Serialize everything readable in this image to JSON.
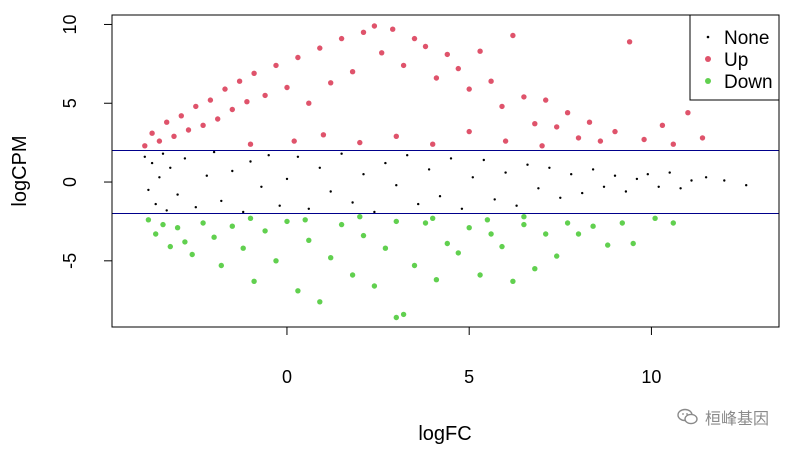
{
  "chart_data": {
    "type": "scatter",
    "title": "",
    "xlabel": "logFC",
    "ylabel": "logCPM",
    "xlim": [
      -4.8,
      13.5
    ],
    "ylim": [
      -9.2,
      10.6
    ],
    "x_ticks": [
      0,
      5,
      10
    ],
    "y_ticks": [
      -5,
      0,
      5,
      10
    ],
    "grid": false,
    "legend_position": "top-right",
    "hlines": [
      2,
      -2
    ],
    "hline_color": "#00008b",
    "series": [
      {
        "name": "None",
        "color": "#000000",
        "marker_size": "small",
        "note_range": "logCPM between -2 and 2",
        "points": [
          [
            -3.9,
            1.6
          ],
          [
            -3.8,
            -0.5
          ],
          [
            -3.7,
            1.2
          ],
          [
            -3.6,
            -1.4
          ],
          [
            -3.5,
            0.3
          ],
          [
            -3.4,
            1.8
          ],
          [
            -3.3,
            -1.8
          ],
          [
            -3.2,
            0.9
          ],
          [
            -3.0,
            -0.8
          ],
          [
            -2.8,
            1.5
          ],
          [
            -2.5,
            -1.6
          ],
          [
            -2.2,
            0.4
          ],
          [
            -2.0,
            1.9
          ],
          [
            -1.8,
            -1.2
          ],
          [
            -1.5,
            0.7
          ],
          [
            -1.2,
            -1.9
          ],
          [
            -1.0,
            1.3
          ],
          [
            -0.7,
            -0.3
          ],
          [
            -0.5,
            1.7
          ],
          [
            -0.2,
            -1.5
          ],
          [
            0.0,
            0.2
          ],
          [
            0.3,
            1.6
          ],
          [
            0.6,
            -1.7
          ],
          [
            0.9,
            0.9
          ],
          [
            1.2,
            -0.6
          ],
          [
            1.5,
            1.8
          ],
          [
            1.8,
            -1.3
          ],
          [
            2.1,
            0.5
          ],
          [
            2.4,
            -1.9
          ],
          [
            2.7,
            1.2
          ],
          [
            3.0,
            -0.2
          ],
          [
            3.3,
            1.7
          ],
          [
            3.6,
            -1.4
          ],
          [
            3.9,
            0.8
          ],
          [
            4.2,
            -0.9
          ],
          [
            4.5,
            1.5
          ],
          [
            4.8,
            -1.7
          ],
          [
            5.1,
            0.3
          ],
          [
            5.4,
            1.4
          ],
          [
            5.7,
            -1.1
          ],
          [
            6.0,
            0.6
          ],
          [
            6.3,
            -1.5
          ],
          [
            6.6,
            1.1
          ],
          [
            6.9,
            -0.4
          ],
          [
            7.2,
            0.9
          ],
          [
            7.5,
            -1.0
          ],
          [
            7.8,
            0.5
          ],
          [
            8.1,
            -0.7
          ],
          [
            8.4,
            0.8
          ],
          [
            8.7,
            -0.3
          ],
          [
            9.0,
            0.4
          ],
          [
            9.3,
            -0.6
          ],
          [
            9.6,
            0.2
          ],
          [
            9.9,
            0.5
          ],
          [
            10.2,
            -0.3
          ],
          [
            10.5,
            0.6
          ],
          [
            10.8,
            -0.4
          ],
          [
            11.1,
            0.1
          ],
          [
            11.5,
            0.3
          ],
          [
            12.0,
            0.1
          ],
          [
            12.6,
            -0.2
          ]
        ]
      },
      {
        "name": "Up",
        "color": "#df536b",
        "marker_size": "large",
        "note_range": "logCPM above 2",
        "points": [
          [
            -3.9,
            2.3
          ],
          [
            -3.7,
            3.1
          ],
          [
            -3.5,
            2.6
          ],
          [
            -3.3,
            3.8
          ],
          [
            -3.1,
            2.9
          ],
          [
            -2.9,
            4.2
          ],
          [
            -2.7,
            3.3
          ],
          [
            -2.5,
            4.8
          ],
          [
            -2.3,
            3.6
          ],
          [
            -2.1,
            5.2
          ],
          [
            -1.9,
            4.0
          ],
          [
            -1.7,
            5.9
          ],
          [
            -1.5,
            4.6
          ],
          [
            -1.3,
            6.4
          ],
          [
            -1.1,
            5.1
          ],
          [
            -0.9,
            6.9
          ],
          [
            -0.6,
            5.5
          ],
          [
            -0.3,
            7.4
          ],
          [
            0.0,
            6.0
          ],
          [
            0.3,
            7.9
          ],
          [
            0.6,
            5.0
          ],
          [
            0.9,
            8.5
          ],
          [
            1.2,
            6.3
          ],
          [
            1.5,
            9.1
          ],
          [
            1.8,
            7.0
          ],
          [
            2.1,
            9.5
          ],
          [
            2.4,
            9.9
          ],
          [
            2.6,
            8.2
          ],
          [
            2.9,
            9.7
          ],
          [
            3.2,
            7.4
          ],
          [
            3.5,
            9.1
          ],
          [
            3.8,
            8.6
          ],
          [
            4.1,
            6.6
          ],
          [
            4.4,
            8.1
          ],
          [
            4.7,
            7.2
          ],
          [
            5.0,
            5.9
          ],
          [
            5.3,
            8.3
          ],
          [
            5.6,
            6.4
          ],
          [
            5.9,
            4.8
          ],
          [
            6.2,
            9.3
          ],
          [
            6.5,
            5.4
          ],
          [
            6.8,
            3.7
          ],
          [
            7.1,
            5.2
          ],
          [
            7.4,
            3.5
          ],
          [
            7.7,
            4.4
          ],
          [
            8.0,
            2.8
          ],
          [
            8.3,
            3.8
          ],
          [
            8.6,
            2.6
          ],
          [
            9.0,
            3.2
          ],
          [
            9.4,
            8.9
          ],
          [
            9.8,
            2.7
          ],
          [
            10.3,
            3.6
          ],
          [
            10.6,
            2.4
          ],
          [
            11.0,
            4.4
          ],
          [
            11.4,
            2.8
          ],
          [
            -1.0,
            2.4
          ],
          [
            0.2,
            2.6
          ],
          [
            1.0,
            3.0
          ],
          [
            2.0,
            2.5
          ],
          [
            3.0,
            2.9
          ],
          [
            4.0,
            2.4
          ],
          [
            5.0,
            3.2
          ],
          [
            6.0,
            2.6
          ],
          [
            7.0,
            2.3
          ]
        ]
      },
      {
        "name": "Down",
        "color": "#61d04f",
        "marker_size": "large",
        "note_range": "logCPM below -2",
        "points": [
          [
            -3.8,
            -2.4
          ],
          [
            -3.6,
            -3.3
          ],
          [
            -3.4,
            -2.7
          ],
          [
            -3.2,
            -4.1
          ],
          [
            -3.0,
            -2.9
          ],
          [
            -2.8,
            -3.8
          ],
          [
            -2.6,
            -4.6
          ],
          [
            -2.3,
            -2.6
          ],
          [
            -2.0,
            -3.5
          ],
          [
            -1.8,
            -5.3
          ],
          [
            -1.5,
            -2.8
          ],
          [
            -1.2,
            -4.2
          ],
          [
            -0.9,
            -6.3
          ],
          [
            -0.6,
            -3.1
          ],
          [
            -0.3,
            -5.0
          ],
          [
            0.0,
            -2.5
          ],
          [
            0.3,
            -6.9
          ],
          [
            0.6,
            -3.7
          ],
          [
            0.9,
            -7.6
          ],
          [
            1.2,
            -4.8
          ],
          [
            1.5,
            -2.7
          ],
          [
            1.8,
            -5.9
          ],
          [
            2.1,
            -3.4
          ],
          [
            2.4,
            -6.6
          ],
          [
            2.7,
            -4.2
          ],
          [
            3.0,
            -8.6
          ],
          [
            3.2,
            -8.4
          ],
          [
            3.5,
            -5.3
          ],
          [
            3.8,
            -2.6
          ],
          [
            4.1,
            -6.2
          ],
          [
            4.4,
            -3.9
          ],
          [
            4.7,
            -4.5
          ],
          [
            5.0,
            -2.9
          ],
          [
            5.3,
            -5.9
          ],
          [
            5.6,
            -3.3
          ],
          [
            5.9,
            -4.1
          ],
          [
            6.2,
            -6.3
          ],
          [
            6.5,
            -2.7
          ],
          [
            6.8,
            -5.5
          ],
          [
            7.1,
            -3.3
          ],
          [
            7.4,
            -4.7
          ],
          [
            7.7,
            -2.6
          ],
          [
            8.0,
            -3.3
          ],
          [
            8.4,
            -2.8
          ],
          [
            8.8,
            -4.0
          ],
          [
            9.2,
            -2.6
          ],
          [
            9.5,
            -3.9
          ],
          [
            10.1,
            -2.3
          ],
          [
            10.6,
            -2.6
          ],
          [
            -1.0,
            -2.3
          ],
          [
            0.5,
            -2.4
          ],
          [
            2.0,
            -2.2
          ],
          [
            3.0,
            -2.5
          ],
          [
            4.0,
            -2.3
          ],
          [
            5.5,
            -2.4
          ],
          [
            6.5,
            -2.2
          ]
        ]
      }
    ]
  },
  "watermark": {
    "text": "桓峰基因",
    "icon": "wechat-icon"
  }
}
